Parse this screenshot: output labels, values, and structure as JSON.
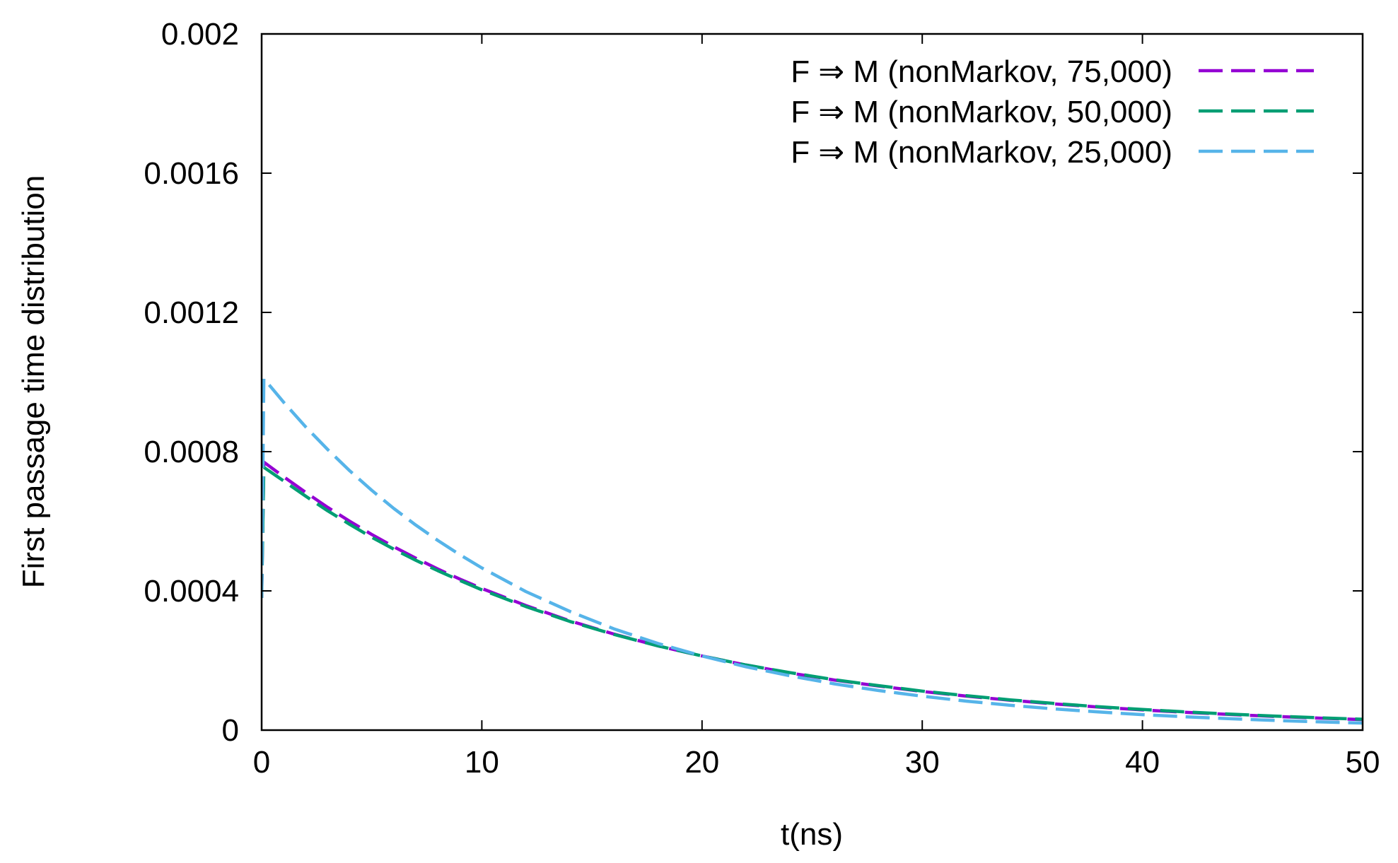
{
  "chart_data": {
    "type": "line",
    "title": "",
    "xlabel": "t(ns)",
    "ylabel": "First passage time distribution",
    "xlim": [
      0,
      50
    ],
    "ylim": [
      0,
      0.002
    ],
    "xticks": [
      0,
      10,
      20,
      30,
      40,
      50
    ],
    "xtick_labels": [
      "0",
      "10",
      "20",
      "30",
      "40",
      "50"
    ],
    "yticks": [
      0,
      0.0004,
      0.0008,
      0.0012,
      0.0016,
      0.002
    ],
    "ytick_labels": [
      "0",
      "0.0004",
      "0.0008",
      "0.0012",
      "0.0016",
      "0.002"
    ],
    "grid": false,
    "legend_position": "top-right",
    "series": [
      {
        "name": "F ⇒ M (nonMarkov, 75,000)",
        "color": "#9400d3",
        "x": [
          0,
          0.1,
          1,
          2,
          3,
          4,
          5,
          6,
          7,
          8,
          9,
          10,
          12,
          14,
          16,
          18,
          20,
          22,
          24,
          26,
          28,
          30,
          32,
          34,
          36,
          38,
          40,
          42,
          44,
          46,
          48,
          50
        ],
        "y": [
          0.00038,
          0.00077,
          0.000728,
          0.000683,
          0.00064,
          0.0006,
          0.000562,
          0.000527,
          0.000494,
          0.000463,
          0.000434,
          0.000407,
          0.000358,
          0.000314,
          0.000276,
          0.000242,
          0.000213,
          0.000187,
          0.000164,
          0.000144,
          0.000127,
          0.000111,
          9.77e-05,
          8.58e-05,
          7.53e-05,
          6.62e-05,
          5.81e-05,
          5.1e-05,
          4.48e-05,
          3.93e-05,
          3.45e-05,
          3.03e-05
        ]
      },
      {
        "name": "F ⇒ M (nonMarkov, 50,000)",
        "color": "#009e73",
        "x": [
          0,
          0.1,
          1,
          2,
          3,
          4,
          5,
          6,
          7,
          8,
          9,
          10,
          12,
          14,
          16,
          18,
          20,
          22,
          24,
          26,
          28,
          30,
          32,
          34,
          36,
          38,
          40,
          42,
          44,
          46,
          48,
          50
        ],
        "y": [
          0.00038,
          0.000755,
          0.000716,
          0.000672,
          0.00063,
          0.000591,
          0.000554,
          0.00052,
          0.000488,
          0.000458,
          0.00043,
          0.000403,
          0.000355,
          0.000312,
          0.000275,
          0.000242,
          0.000213,
          0.000187,
          0.000165,
          0.000145,
          0.000128,
          0.000112,
          9.88e-05,
          8.69e-05,
          7.65e-05,
          6.73e-05,
          5.92e-05,
          5.21e-05,
          4.59e-05,
          4.04e-05,
          3.55e-05,
          3.13e-05
        ]
      },
      {
        "name": "F ⇒ M (nonMarkov, 25,000)",
        "color": "#56b4e9",
        "x": [
          0,
          0.1,
          1,
          2,
          3,
          4,
          5,
          6,
          7,
          8,
          9,
          10,
          12,
          14,
          16,
          18,
          20,
          22,
          24,
          26,
          28,
          30,
          32,
          34,
          36,
          38,
          40,
          42,
          44,
          46,
          48,
          50
        ],
        "y": [
          0.00038,
          0.00101,
          0.000942,
          0.000871,
          0.000806,
          0.000745,
          0.000689,
          0.000637,
          0.000589,
          0.000545,
          0.000504,
          0.000466,
          0.000398,
          0.000341,
          0.000291,
          0.000249,
          0.000213,
          0.000182,
          0.000156,
          0.000133,
          0.000114,
          9.74e-05,
          8.33e-05,
          7.12e-05,
          6.09e-05,
          5.21e-05,
          4.45e-05,
          3.81e-05,
          3.26e-05,
          2.78e-05,
          2.38e-05,
          2.04e-05
        ]
      }
    ]
  }
}
